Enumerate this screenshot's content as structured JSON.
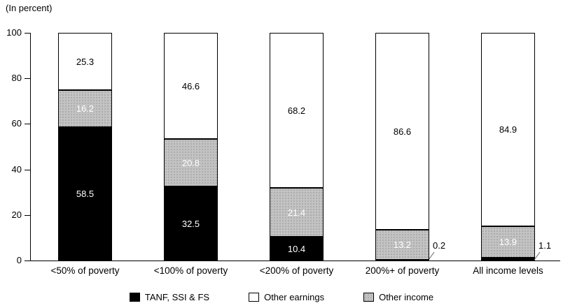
{
  "chart_data": {
    "type": "bar",
    "subtype": "stacked-vertical",
    "title": "",
    "unit_label": "(In percent)",
    "categories": [
      "<50% of poverty",
      "<100% of poverty",
      "<200% of poverty",
      "200%+ of poverty",
      "All income levels"
    ],
    "series": [
      {
        "name": "TANF, SSI & FS",
        "color": "#000000",
        "fill": "black",
        "values": [
          58.5,
          32.5,
          10.4,
          0.2,
          1.1
        ]
      },
      {
        "name": "Other income",
        "color": "#c3c3c3",
        "fill": "stipple",
        "values": [
          16.2,
          20.8,
          21.4,
          13.2,
          13.9
        ]
      },
      {
        "name": "Other earnings",
        "color": "#ffffff",
        "fill": "white",
        "values": [
          25.3,
          46.6,
          68.2,
          86.6,
          84.9
        ]
      }
    ],
    "legend": [
      "TANF, SSI & FS",
      "Other earnings",
      "Other income"
    ],
    "legend_position": "bottom",
    "ylim": [
      0,
      100
    ],
    "yticks": [
      0,
      20,
      40,
      60,
      80,
      100
    ],
    "grid": false,
    "value_label_outside_threshold": 2
  }
}
